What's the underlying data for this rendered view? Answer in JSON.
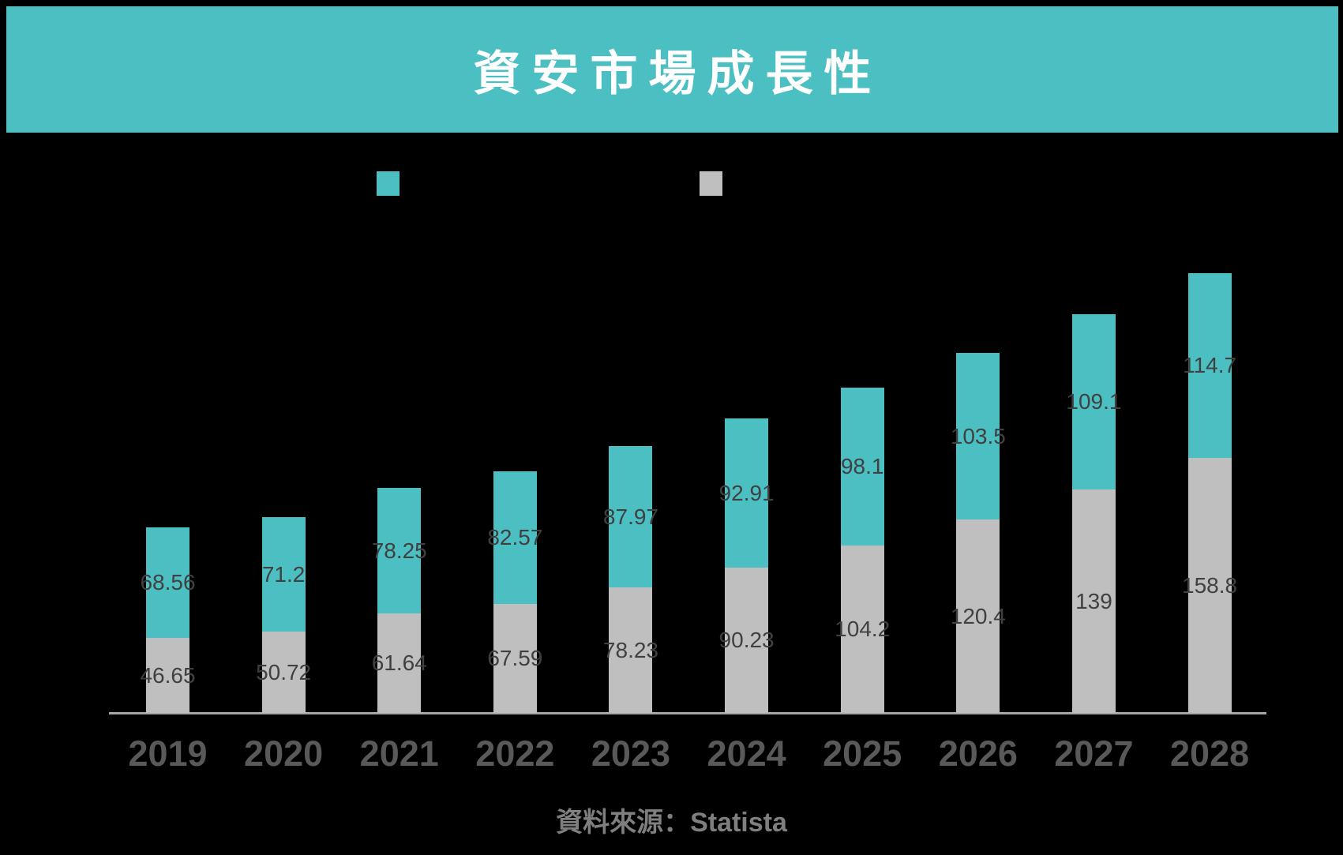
{
  "page": {
    "background_color": "#000000"
  },
  "header": {
    "title": "資安市場成長性",
    "banner_color": "#4BBFC2",
    "title_color": "#FFFFFF"
  },
  "legend": {
    "items": [
      {
        "label": "",
        "color": "#4BBFC2"
      },
      {
        "label": "",
        "color": "#BFBFBF"
      }
    ]
  },
  "chart_data": {
    "type": "bar",
    "stacked": true,
    "title": "資安市場成長性",
    "categories": [
      "2019",
      "2020",
      "2021",
      "2022",
      "2023",
      "2024",
      "2025",
      "2026",
      "2027",
      "2028"
    ],
    "series": [
      {
        "name": "top-segment-teal",
        "color": "#4BBFC2",
        "values": [
          68.56,
          71.2,
          78.25,
          82.57,
          87.97,
          92.91,
          98.1,
          103.5,
          109.1,
          114.7
        ]
      },
      {
        "name": "bottom-segment-gray",
        "color": "#BFBFBF",
        "values": [
          46.65,
          50.72,
          61.64,
          67.59,
          78.23,
          90.23,
          104.2,
          120.4,
          139,
          158.8
        ]
      }
    ],
    "value_labels_visible": true,
    "xlabel": "",
    "ylabel": "",
    "y_axis_visible": false,
    "gridlines": false,
    "legend_position": "top",
    "axis_line_color": "#A6A6A6",
    "tick_label_color": "#595959",
    "value_label_color": "#404040"
  },
  "footer": {
    "source": "資料來源：Statista"
  }
}
